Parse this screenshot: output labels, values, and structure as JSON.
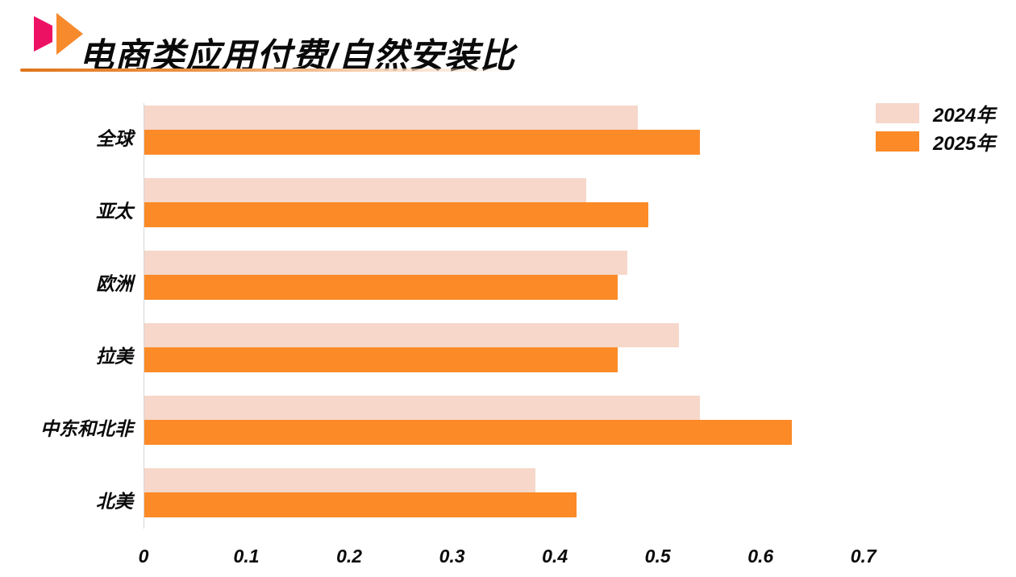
{
  "header": {
    "title": "电商类应用付费/自然安装比",
    "logo": {
      "name": "double-play-triangle-logo",
      "magenta": "#ed1164",
      "orange": "#f78a2d"
    },
    "divider_gradient": [
      "#e0761c",
      "#eb9347",
      "#f5d2b5",
      "rgba(255,255,255,0)"
    ]
  },
  "legend": [
    {
      "label": "2024年",
      "color": "#f6d7ca"
    },
    {
      "label": "2025年",
      "color": "#fb8a27"
    }
  ],
  "chart_data": {
    "type": "bar",
    "orientation": "horizontal",
    "title": "电商类应用付费/自然安装比",
    "xlabel": "",
    "ylabel": "",
    "categories": [
      "全球",
      "亚太",
      "欧洲",
      "拉美",
      "中东和北非",
      "北美"
    ],
    "series": [
      {
        "name": "2024年",
        "color": "#f6d7ca",
        "values": [
          0.48,
          0.43,
          0.47,
          0.52,
          0.54,
          0.38
        ]
      },
      {
        "name": "2025年",
        "color": "#fb8a27",
        "values": [
          0.54,
          0.49,
          0.46,
          0.46,
          0.63,
          0.42
        ]
      }
    ],
    "xlim": [
      0,
      0.77
    ],
    "x_ticks": [
      0,
      0.1,
      0.2,
      0.3,
      0.4,
      0.5,
      0.6,
      0.7
    ],
    "x_tick_labels": [
      "0",
      "0.1",
      "0.2",
      "0.3",
      "0.4",
      "0.5",
      "0.6",
      "0.7"
    ],
    "grid": false,
    "legend_position": "top-right",
    "axis_line_color": "#d6d6d6"
  }
}
